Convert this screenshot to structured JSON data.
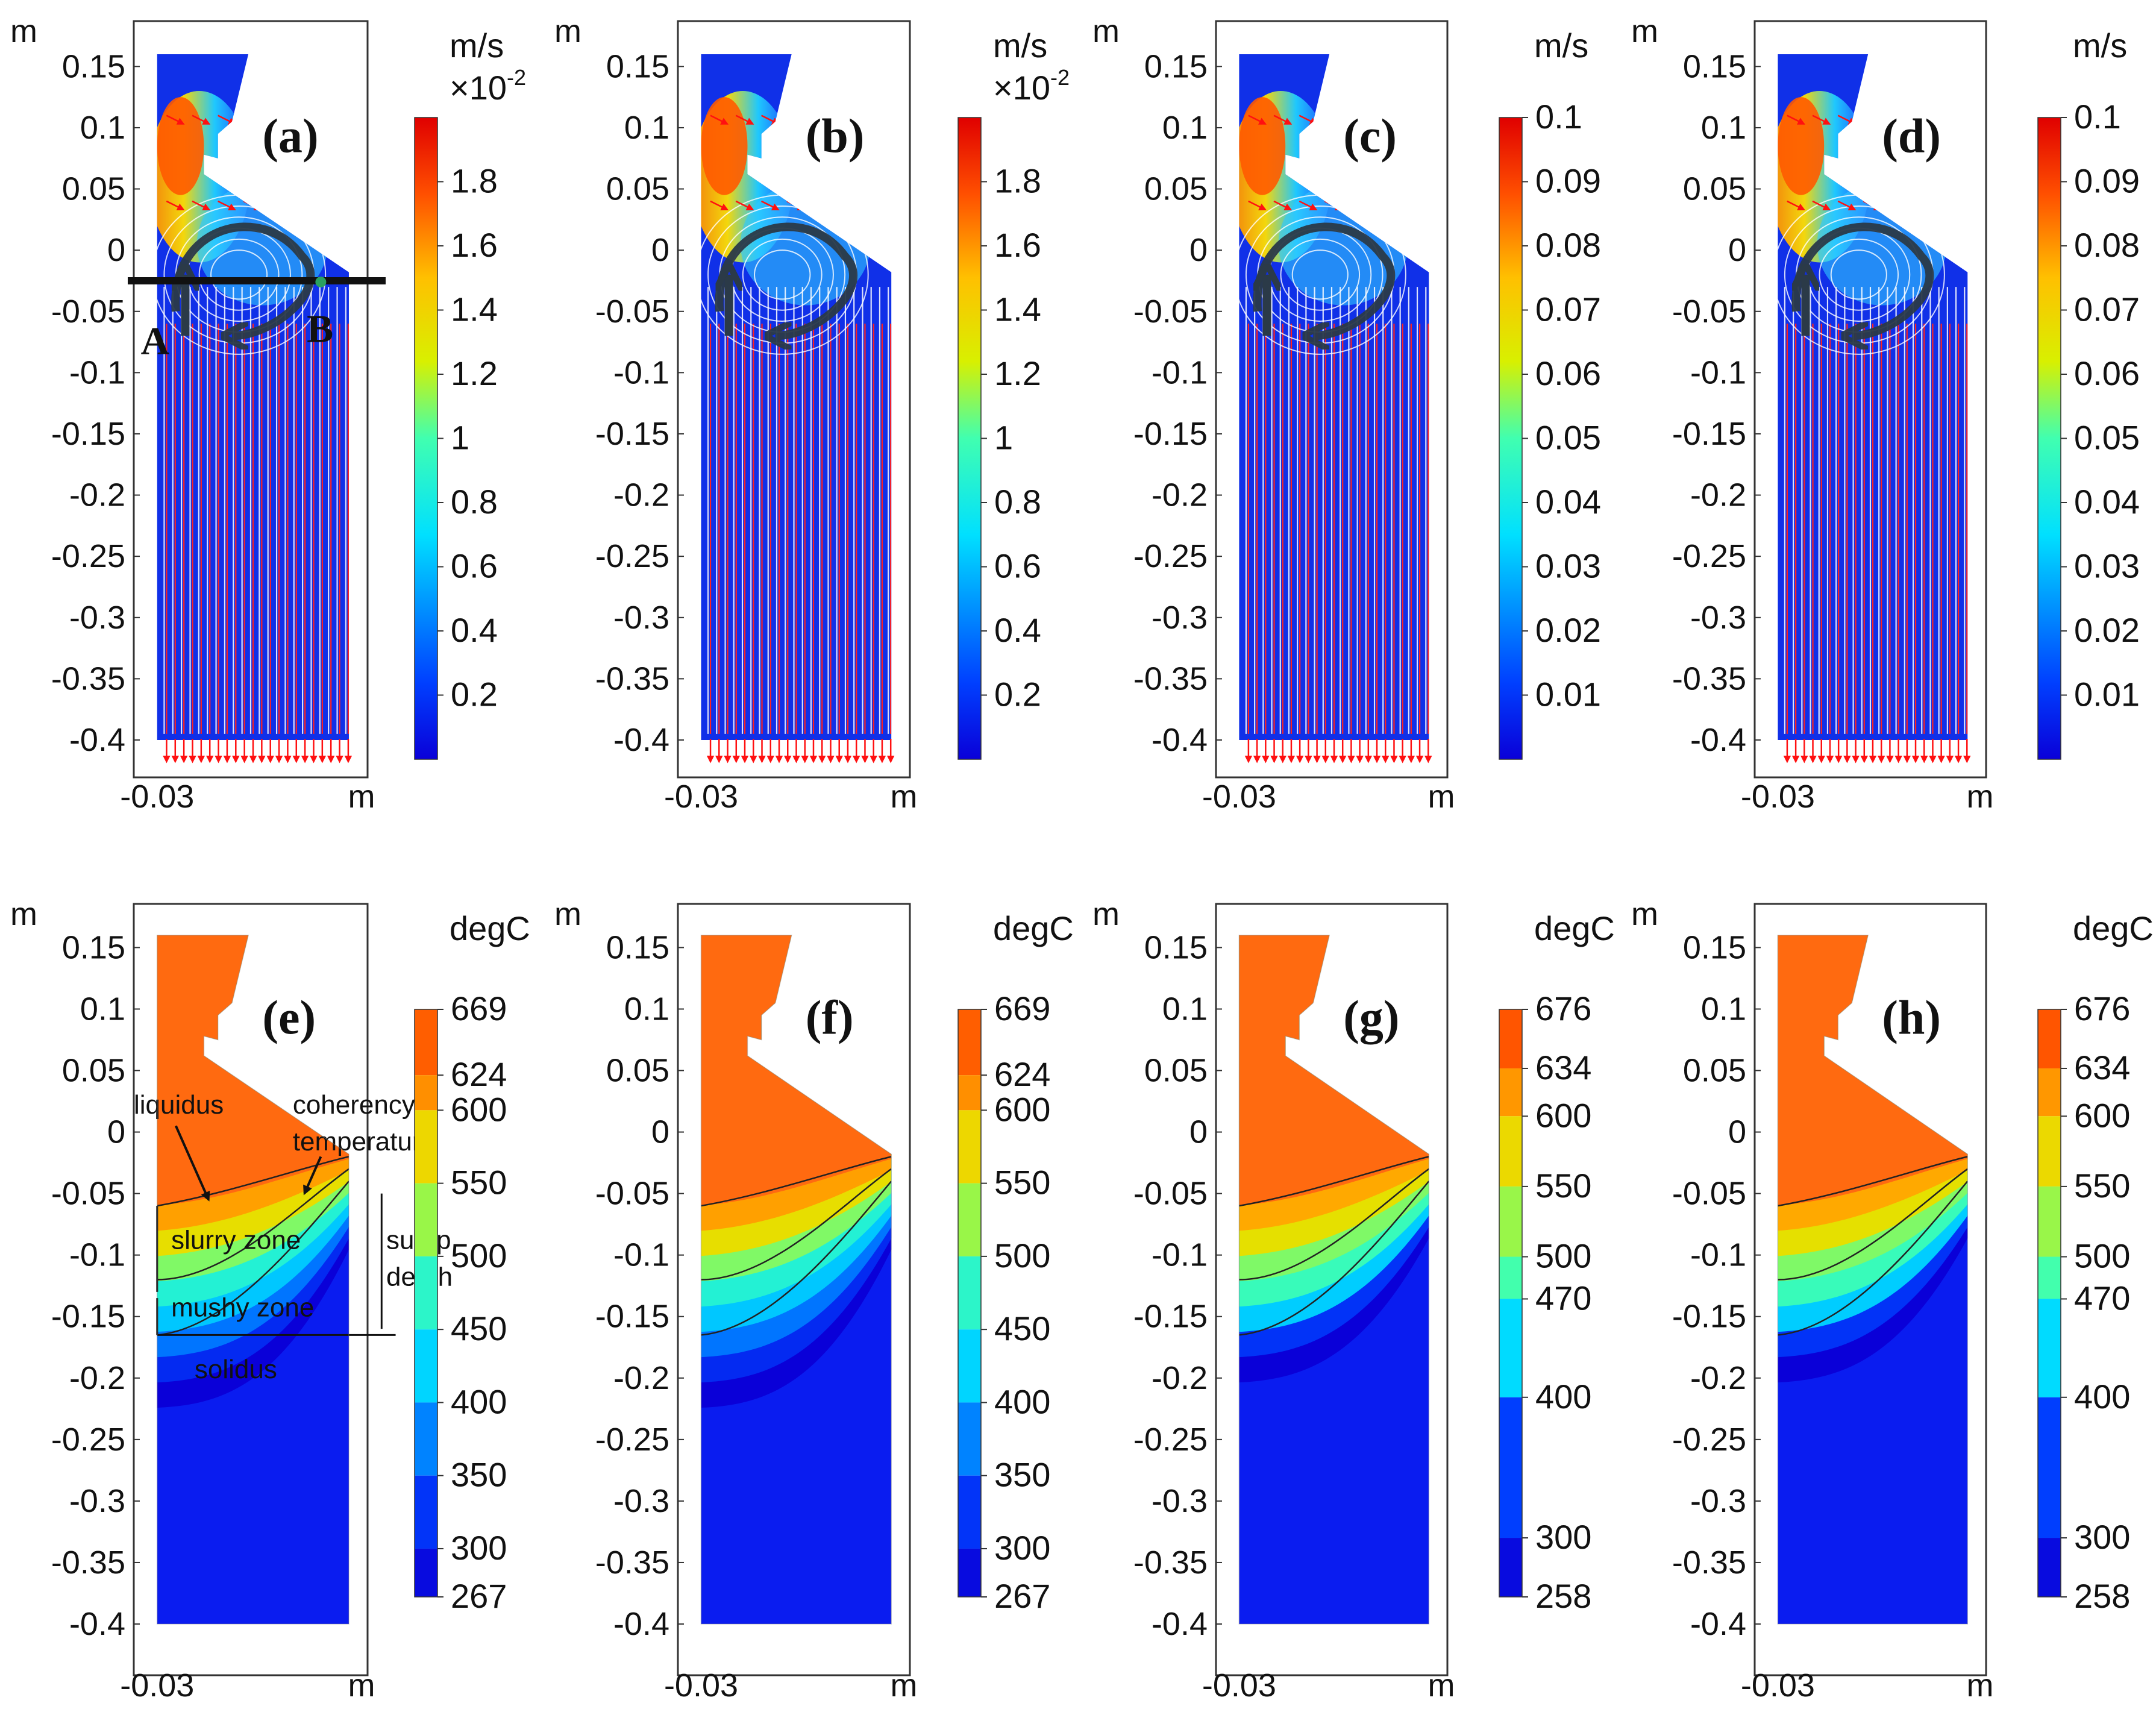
{
  "figure": {
    "panels": [
      "(a)",
      "(b)",
      "(c)",
      "(d)",
      "(e)",
      "(f)",
      "(g)",
      "(h)"
    ],
    "axis_unit_label": "m"
  },
  "chart_data": [
    {
      "id": "a",
      "type": "heatmap",
      "title": "(a)",
      "quantity": "velocity streamlines",
      "xlabel": "m",
      "ylabel": "m",
      "x_tick_labels": [
        "-0.03"
      ],
      "y_tick_labels": [
        "0.15",
        "0.1",
        "0.05",
        "0",
        "-0.05",
        "-0.1",
        "-0.15",
        "-0.2",
        "-0.25",
        "-0.3",
        "-0.35",
        "-0.4"
      ],
      "ylim": [
        -0.4,
        0.16
      ],
      "xlim": [
        -0.03,
        0.005
      ],
      "colorbar": {
        "unit": "m/s",
        "multiplier": "×10",
        "exponent": "-2",
        "min": 0,
        "max": 2,
        "ticks": [
          "1.8",
          "1.6",
          "1.4",
          "1.2",
          "1",
          "0.8",
          "0.6",
          "0.4",
          "0.2"
        ],
        "tick_values": [
          1.8,
          1.6,
          1.4,
          1.2,
          1,
          0.8,
          0.6,
          0.4,
          0.2
        ]
      },
      "annotations": {
        "A": "A",
        "B": "B",
        "line_y": -0.025
      }
    },
    {
      "id": "b",
      "type": "heatmap",
      "title": "(b)",
      "quantity": "velocity streamlines",
      "xlabel": "m",
      "ylabel": "m",
      "x_tick_labels": [
        "-0.03"
      ],
      "y_tick_labels": [
        "0.15",
        "0.1",
        "0.05",
        "0",
        "-0.05",
        "-0.1",
        "-0.15",
        "-0.2",
        "-0.25",
        "-0.3",
        "-0.35",
        "-0.4"
      ],
      "ylim": [
        -0.4,
        0.16
      ],
      "xlim": [
        -0.03,
        0.005
      ],
      "colorbar": {
        "unit": "m/s",
        "multiplier": "×10",
        "exponent": "-2",
        "min": 0,
        "max": 2,
        "ticks": [
          "1.8",
          "1.6",
          "1.4",
          "1.2",
          "1",
          "0.8",
          "0.6",
          "0.4",
          "0.2"
        ],
        "tick_values": [
          1.8,
          1.6,
          1.4,
          1.2,
          1,
          0.8,
          0.6,
          0.4,
          0.2
        ]
      }
    },
    {
      "id": "c",
      "type": "heatmap",
      "title": "(c)",
      "quantity": "velocity streamlines",
      "xlabel": "m",
      "ylabel": "m",
      "x_tick_labels": [
        "-0.03"
      ],
      "y_tick_labels": [
        "0.15",
        "0.1",
        "0.05",
        "0",
        "-0.05",
        "-0.1",
        "-0.15",
        "-0.2",
        "-0.25",
        "-0.3",
        "-0.35",
        "-0.4"
      ],
      "ylim": [
        -0.4,
        0.16
      ],
      "xlim": [
        -0.03,
        0.005
      ],
      "colorbar": {
        "unit": "m/s",
        "min": 0,
        "max": 0.1,
        "ticks": [
          "0.1",
          "0.09",
          "0.08",
          "0.07",
          "0.06",
          "0.05",
          "0.04",
          "0.03",
          "0.02",
          "0.01"
        ],
        "tick_values": [
          0.1,
          0.09,
          0.08,
          0.07,
          0.06,
          0.05,
          0.04,
          0.03,
          0.02,
          0.01
        ]
      }
    },
    {
      "id": "d",
      "type": "heatmap",
      "title": "(d)",
      "quantity": "velocity streamlines",
      "xlabel": "m",
      "ylabel": "m",
      "x_tick_labels": [
        "-0.03"
      ],
      "y_tick_labels": [
        "0.15",
        "0.1",
        "0.05",
        "0",
        "-0.05",
        "-0.1",
        "-0.15",
        "-0.2",
        "-0.25",
        "-0.3",
        "-0.35",
        "-0.4"
      ],
      "ylim": [
        -0.4,
        0.16
      ],
      "xlim": [
        -0.03,
        0.005
      ],
      "colorbar": {
        "unit": "m/s",
        "min": 0,
        "max": 0.1,
        "ticks": [
          "0.1",
          "0.09",
          "0.08",
          "0.07",
          "0.06",
          "0.05",
          "0.04",
          "0.03",
          "0.02",
          "0.01"
        ],
        "tick_values": [
          0.1,
          0.09,
          0.08,
          0.07,
          0.06,
          0.05,
          0.04,
          0.03,
          0.02,
          0.01
        ]
      }
    },
    {
      "id": "e",
      "type": "heatmap",
      "title": "(e)",
      "quantity": "temperature",
      "xlabel": "m",
      "ylabel": "m",
      "x_tick_labels": [
        "-0.03"
      ],
      "y_tick_labels": [
        "0.15",
        "0.1",
        "0.05",
        "0",
        "-0.05",
        "-0.1",
        "-0.15",
        "-0.2",
        "-0.25",
        "-0.3",
        "-0.35",
        "-0.4"
      ],
      "ylim": [
        -0.4,
        0.16
      ],
      "xlim": [
        -0.03,
        0.005
      ],
      "colorbar": {
        "unit": "degC",
        "min": 267,
        "max": 669,
        "ticks": [
          "669",
          "624",
          "600",
          "550",
          "500",
          "450",
          "400",
          "350",
          "300",
          "267"
        ],
        "tick_values": [
          669,
          624,
          600,
          550,
          500,
          450,
          400,
          350,
          300,
          267
        ]
      },
      "annotations": {
        "liquidus": "liquidus",
        "coherency": "coherency",
        "temperature": "temperature",
        "slurry_zone": "slurry zone",
        "mushy_zone": "mushy zone",
        "solidus": "solidus",
        "sump": "sump",
        "depth": "depth"
      }
    },
    {
      "id": "f",
      "type": "heatmap",
      "title": "(f)",
      "quantity": "temperature",
      "xlabel": "m",
      "ylabel": "m",
      "x_tick_labels": [
        "-0.03"
      ],
      "y_tick_labels": [
        "0.15",
        "0.1",
        "0.05",
        "0",
        "-0.05",
        "-0.1",
        "-0.15",
        "-0.2",
        "-0.25",
        "-0.3",
        "-0.35",
        "-0.4"
      ],
      "ylim": [
        -0.4,
        0.16
      ],
      "xlim": [
        -0.03,
        0.005
      ],
      "colorbar": {
        "unit": "degC",
        "min": 267,
        "max": 669,
        "ticks": [
          "669",
          "624",
          "600",
          "550",
          "500",
          "450",
          "400",
          "350",
          "300",
          "267"
        ],
        "tick_values": [
          669,
          624,
          600,
          550,
          500,
          450,
          400,
          350,
          300,
          267
        ]
      }
    },
    {
      "id": "g",
      "type": "heatmap",
      "title": "(g)",
      "quantity": "temperature",
      "xlabel": "m",
      "ylabel": "m",
      "x_tick_labels": [
        "-0.03"
      ],
      "y_tick_labels": [
        "0.15",
        "0.1",
        "0.05",
        "0",
        "-0.05",
        "-0.1",
        "-0.15",
        "-0.2",
        "-0.25",
        "-0.3",
        "-0.35",
        "-0.4"
      ],
      "ylim": [
        -0.4,
        0.16
      ],
      "xlim": [
        -0.03,
        0.005
      ],
      "colorbar": {
        "unit": "degC",
        "min": 258,
        "max": 676,
        "ticks": [
          "676",
          "634",
          "600",
          "550",
          "500",
          "470",
          "400",
          "300",
          "258"
        ],
        "tick_values": [
          676,
          634,
          600,
          550,
          500,
          470,
          400,
          300,
          258
        ]
      }
    },
    {
      "id": "h",
      "type": "heatmap",
      "title": "(h)",
      "quantity": "temperature",
      "xlabel": "m",
      "ylabel": "m",
      "x_tick_labels": [
        "-0.03"
      ],
      "y_tick_labels": [
        "0.15",
        "0.1",
        "0.05",
        "0",
        "-0.05",
        "-0.1",
        "-0.15",
        "-0.2",
        "-0.25",
        "-0.3",
        "-0.35",
        "-0.4"
      ],
      "ylim": [
        -0.4,
        0.16
      ],
      "xlim": [
        -0.03,
        0.005
      ],
      "colorbar": {
        "unit": "degC",
        "min": 258,
        "max": 676,
        "ticks": [
          "676",
          "634",
          "600",
          "550",
          "500",
          "470",
          "400",
          "300",
          "258"
        ],
        "tick_values": [
          676,
          634,
          600,
          550,
          500,
          470,
          400,
          300,
          258
        ]
      }
    }
  ]
}
